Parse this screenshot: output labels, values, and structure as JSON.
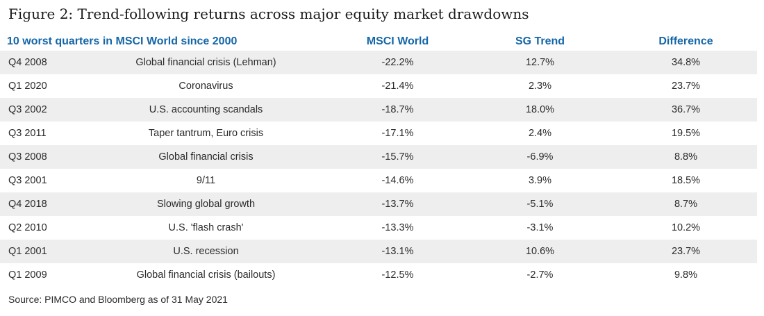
{
  "figure": {
    "title": "Figure 2: Trend-following returns across major equity market drawdowns",
    "source": "Source: PIMCO and Bloomberg as of 31 May 2021"
  },
  "colors": {
    "header_text": "#1466a8",
    "stripe": "#eeeeee"
  },
  "chart_data": {
    "type": "table",
    "title": "Figure 2: Trend-following returns across major equity market drawdowns",
    "columns": [
      "10 worst quarters in MSCI World since 2000",
      "",
      "MSCI World",
      "SG Trend",
      "Difference"
    ],
    "rows": [
      {
        "quarter": "Q4 2008",
        "event": "Global financial crisis (Lehman)",
        "msci": "-22.2%",
        "sg": "12.7%",
        "diff": "34.8%"
      },
      {
        "quarter": "Q1 2020",
        "event": "Coronavirus",
        "msci": "-21.4%",
        "sg": "2.3%",
        "diff": "23.7%"
      },
      {
        "quarter": "Q3 2002",
        "event": "U.S. accounting scandals",
        "msci": "-18.7%",
        "sg": "18.0%",
        "diff": "36.7%"
      },
      {
        "quarter": "Q3 2011",
        "event": "Taper tantrum, Euro crisis",
        "msci": "-17.1%",
        "sg": "2.4%",
        "diff": "19.5%"
      },
      {
        "quarter": "Q3 2008",
        "event": "Global financial crisis",
        "msci": "-15.7%",
        "sg": "-6.9%",
        "diff": "8.8%"
      },
      {
        "quarter": "Q3 2001",
        "event": "9/11",
        "msci": "-14.6%",
        "sg": "3.9%",
        "diff": "18.5%"
      },
      {
        "quarter": "Q4 2018",
        "event": "Slowing global growth",
        "msci": "-13.7%",
        "sg": "-5.1%",
        "diff": "8.7%"
      },
      {
        "quarter": "Q2 2010",
        "event": "U.S. 'flash crash'",
        "msci": "-13.3%",
        "sg": "-3.1%",
        "diff": "10.2%"
      },
      {
        "quarter": "Q1 2001",
        "event": "U.S. recession",
        "msci": "-13.1%",
        "sg": "10.6%",
        "diff": "23.7%"
      },
      {
        "quarter": "Q1 2009",
        "event": "Global financial crisis (bailouts)",
        "msci": "-12.5%",
        "sg": "-2.7%",
        "diff": "9.8%"
      }
    ]
  }
}
